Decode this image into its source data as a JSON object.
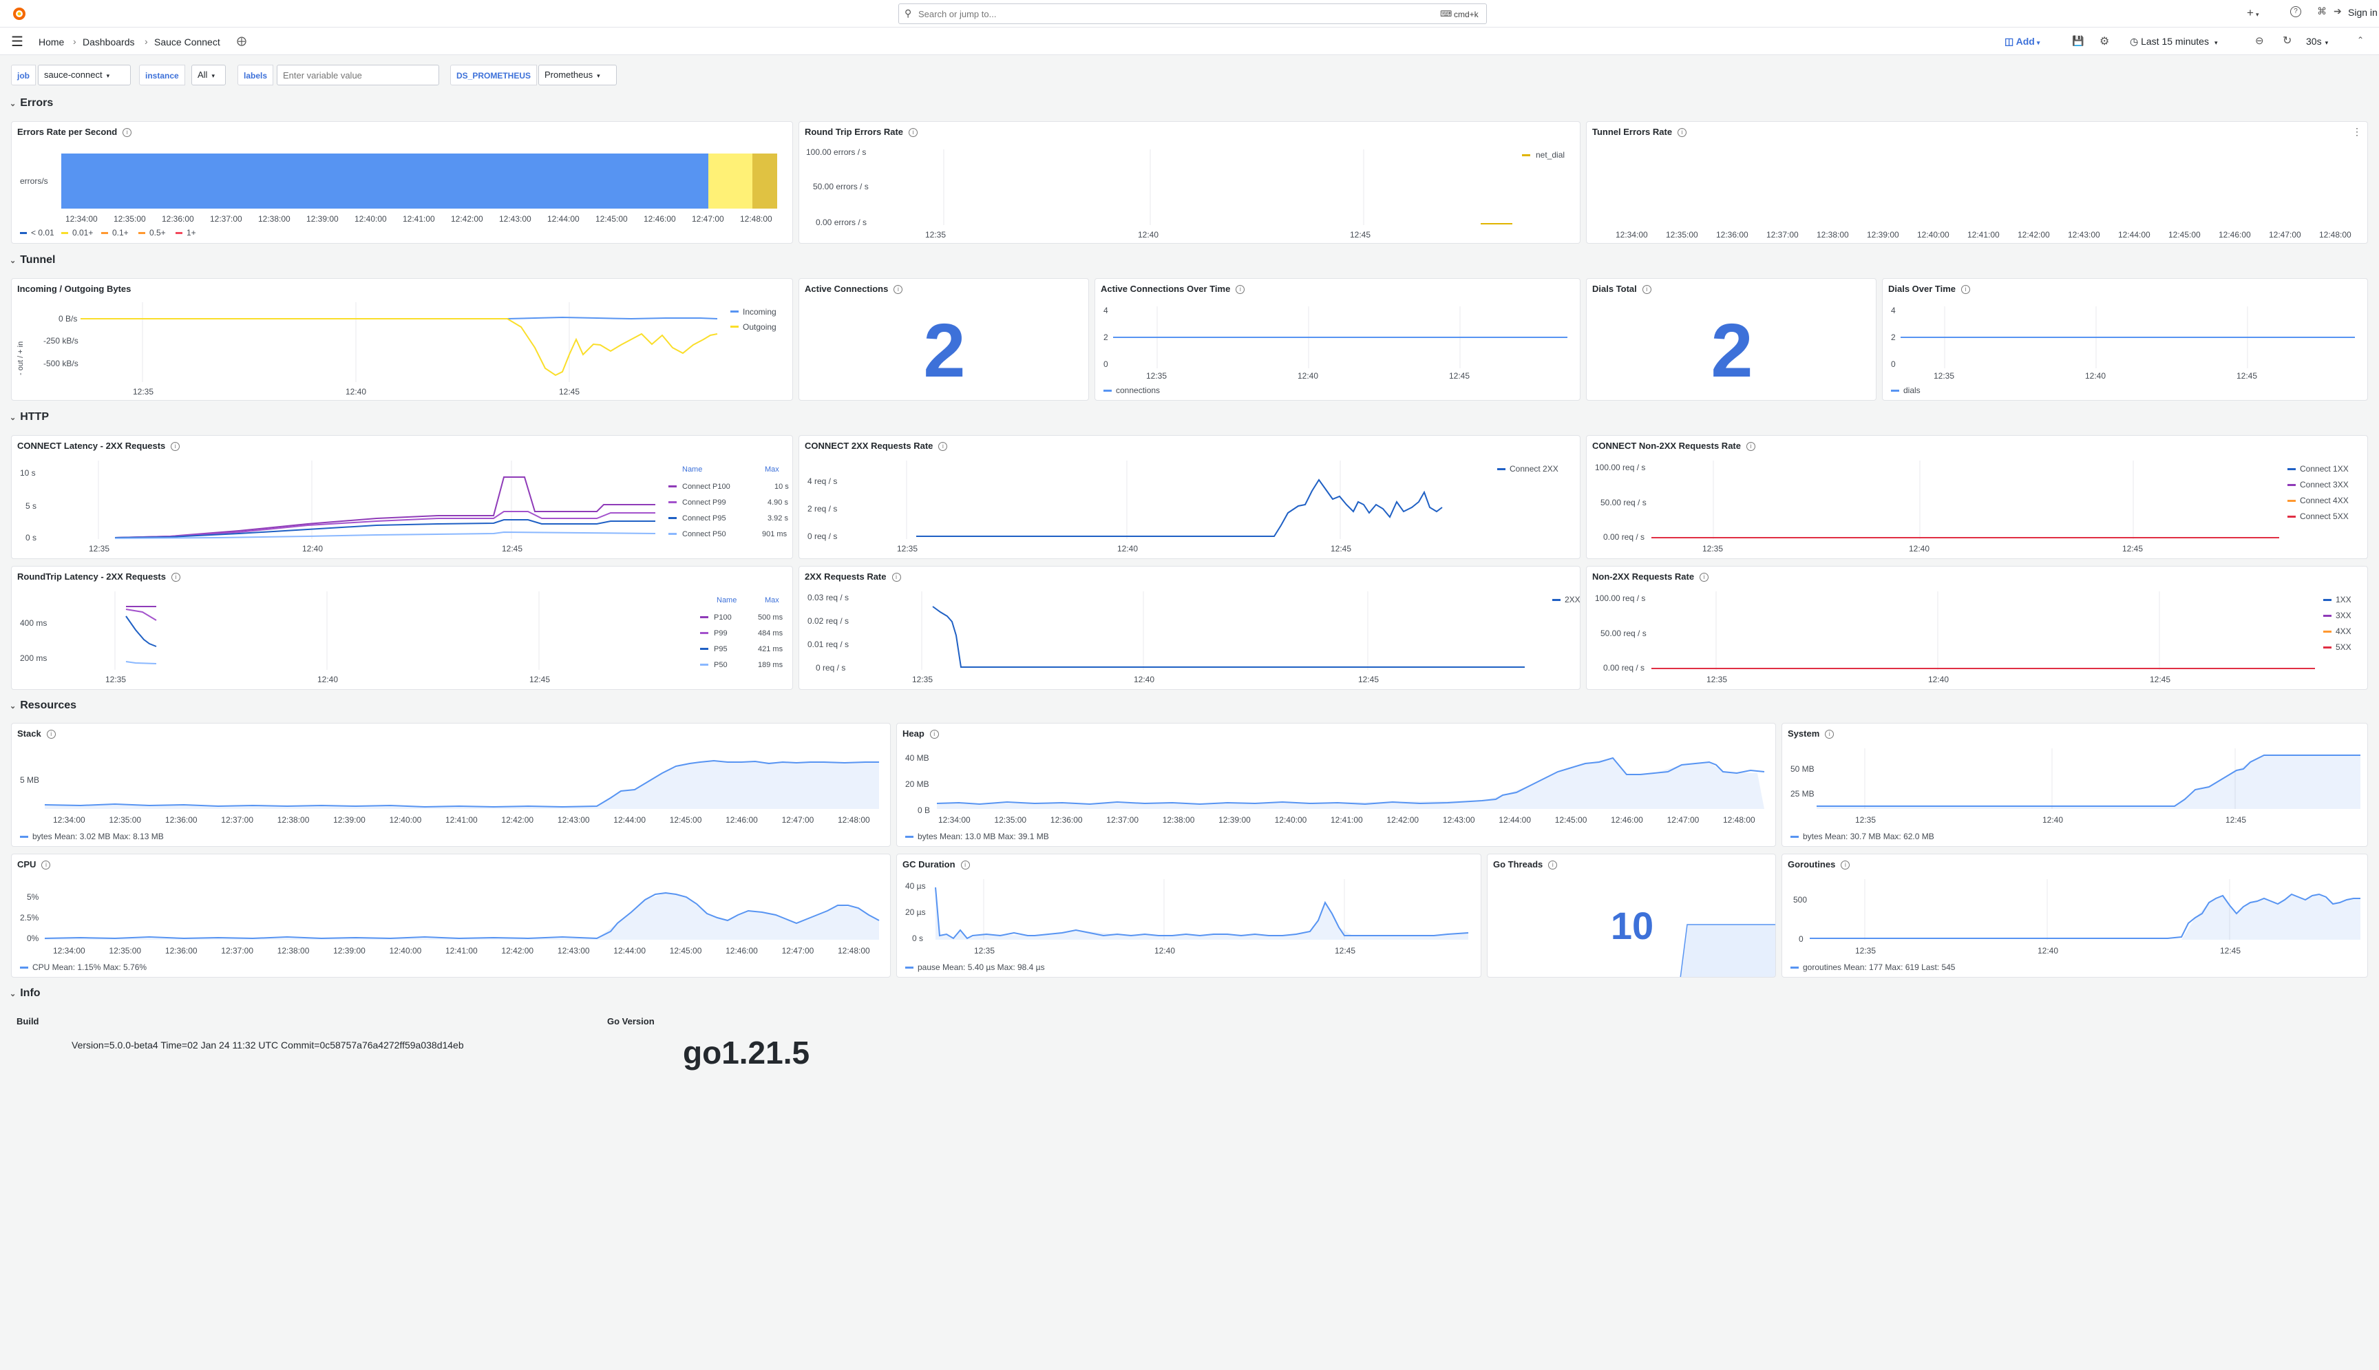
{
  "topbar": {
    "search_placeholder": "Search or jump to...",
    "search_shortcut": "cmd+k",
    "plus_label": "+",
    "sign_in": "Sign in"
  },
  "navbar": {
    "breadcrumb": [
      "Home",
      "Dashboards",
      "Sauce Connect"
    ],
    "add_label": "Add",
    "time_range": "Last 15 minutes",
    "refresh": "30s"
  },
  "variables": [
    {
      "label": "job",
      "value": "sauce-connect"
    },
    {
      "label": "instance",
      "value": "All"
    },
    {
      "label": "labels",
      "placeholder": "Enter variable value"
    },
    {
      "label": "DS_PROMETHEUS",
      "value": "Prometheus"
    }
  ],
  "rows": {
    "errors": "Errors",
    "tunnel": "Tunnel",
    "http": "HTTP",
    "resources": "Resources",
    "info": "Info"
  },
  "colors": {
    "blue": "#5794f2",
    "yellow": "#fade2a",
    "orange": "#ff9830",
    "red": "#f2495c",
    "purple": "#8f3bb8",
    "darkblue": "#1f60c4",
    "lightblue": "#8ab8ff",
    "statblue": "#3d71d9",
    "dark_yellow": "#e0b400"
  },
  "panels": {
    "errors_rate": {
      "title": "Errors Rate per Second",
      "ylabel": "errors/s",
      "xticks": [
        "12:34:00",
        "12:35:00",
        "12:36:00",
        "12:37:00",
        "12:38:00",
        "12:39:00",
        "12:40:00",
        "12:41:00",
        "12:42:00",
        "12:43:00",
        "12:44:00",
        "12:45:00",
        "12:46:00",
        "12:47:00",
        "12:48:00"
      ],
      "legend": [
        "< 0.01",
        "0.01+",
        "0.1+",
        "0.5+",
        "1+"
      ]
    },
    "rt_errors": {
      "title": "Round Trip Errors Rate",
      "yticks": [
        "100.00 errors / s",
        "50.00 errors / s",
        "0.00 errors / s"
      ],
      "xticks": [
        "12:35",
        "12:40",
        "12:45"
      ],
      "legend": [
        "net_dial"
      ]
    },
    "tunnel_errors": {
      "title": "Tunnel Errors Rate",
      "xticks": [
        "12:34:00",
        "12:35:00",
        "12:36:00",
        "12:37:00",
        "12:38:00",
        "12:39:00",
        "12:40:00",
        "12:41:00",
        "12:42:00",
        "12:43:00",
        "12:44:00",
        "12:45:00",
        "12:46:00",
        "12:47:00",
        "12:48:00"
      ]
    },
    "io_bytes": {
      "title": "Incoming / Outgoing Bytes",
      "ylabel": "- out / + in",
      "yticks": [
        "0 B/s",
        "-250 kB/s",
        "-500 kB/s"
      ],
      "xticks": [
        "12:35",
        "12:40",
        "12:45"
      ],
      "legend": [
        "Incoming",
        "Outgoing"
      ]
    },
    "active_conn": {
      "title": "Active Connections",
      "value": "2"
    },
    "active_conn_time": {
      "title": "Active Connections Over Time",
      "yticks": [
        "4",
        "2",
        "0"
      ],
      "xticks": [
        "12:35",
        "12:40",
        "12:45"
      ],
      "legend": [
        "connections"
      ]
    },
    "dials_total": {
      "title": "Dials Total",
      "value": "2"
    },
    "dials_time": {
      "title": "Dials Over Time",
      "yticks": [
        "4",
        "2",
        "0"
      ],
      "xticks": [
        "12:35",
        "12:40",
        "12:45"
      ],
      "legend": [
        "dials"
      ]
    },
    "connect_latency": {
      "title": "CONNECT Latency - 2XX Requests",
      "yticks": [
        "10 s",
        "5 s",
        "0 s"
      ],
      "xticks": [
        "12:35",
        "12:40",
        "12:45"
      ],
      "legend_headers": [
        "Name",
        "Max"
      ],
      "legend": [
        [
          "Connect P100",
          "10 s"
        ],
        [
          "Connect P99",
          "4.90 s"
        ],
        [
          "Connect P95",
          "3.92 s"
        ],
        [
          "Connect P50",
          "901 ms"
        ]
      ]
    },
    "connect_2xx": {
      "title": "CONNECT 2XX Requests Rate",
      "yticks": [
        "4 req / s",
        "2 req / s",
        "0 req / s"
      ],
      "xticks": [
        "12:35",
        "12:40",
        "12:45"
      ],
      "legend": [
        "Connect 2XX"
      ]
    },
    "connect_non2xx": {
      "title": "CONNECT Non-2XX Requests Rate",
      "yticks": [
        "100.00 req / s",
        "50.00 req / s",
        "0.00 req / s"
      ],
      "xticks": [
        "12:35",
        "12:40",
        "12:45"
      ],
      "legend": [
        "Connect 1XX",
        "Connect 3XX",
        "Connect 4XX",
        "Connect 5XX"
      ]
    },
    "rt_latency": {
      "title": "RoundTrip Latency - 2XX Requests",
      "yticks": [
        "400 ms",
        "200 ms"
      ],
      "xticks": [
        "12:35",
        "12:40",
        "12:45"
      ],
      "legend_headers": [
        "Name",
        "Max"
      ],
      "legend": [
        [
          "P100",
          "500 ms"
        ],
        [
          "P99",
          "484 ms"
        ],
        [
          "P95",
          "421 ms"
        ],
        [
          "P50",
          "189 ms"
        ]
      ]
    },
    "rate_2xx": {
      "title": "2XX Requests Rate",
      "yticks": [
        "0.03 req / s",
        "0.02 req / s",
        "0.01 req / s",
        "0 req / s"
      ],
      "xticks": [
        "12:35",
        "12:40",
        "12:45"
      ],
      "legend": [
        "2XX"
      ]
    },
    "rate_non2xx": {
      "title": "Non-2XX Requests Rate",
      "yticks": [
        "100.00 req / s",
        "50.00 req / s",
        "0.00 req / s"
      ],
      "xticks": [
        "12:35",
        "12:40",
        "12:45"
      ],
      "legend": [
        "1XX",
        "3XX",
        "4XX",
        "5XX"
      ]
    },
    "stack": {
      "title": "Stack",
      "yticks": [
        "5 MB"
      ],
      "xticks": [
        "12:34:00",
        "12:35:00",
        "12:36:00",
        "12:37:00",
        "12:38:00",
        "12:39:00",
        "12:40:00",
        "12:41:00",
        "12:42:00",
        "12:43:00",
        "12:44:00",
        "12:45:00",
        "12:46:00",
        "12:47:00",
        "12:48:00"
      ],
      "legend": "bytes  Mean: 3.02 MB  Max: 8.13 MB"
    },
    "heap": {
      "title": "Heap",
      "yticks": [
        "40 MB",
        "20 MB",
        "0 B"
      ],
      "xticks": [
        "12:34:00",
        "12:35:00",
        "12:36:00",
        "12:37:00",
        "12:38:00",
        "12:39:00",
        "12:40:00",
        "12:41:00",
        "12:42:00",
        "12:43:00",
        "12:44:00",
        "12:45:00",
        "12:46:00",
        "12:47:00",
        "12:48:00"
      ],
      "legend": "bytes  Mean: 13.0 MB  Max: 39.1 MB"
    },
    "system": {
      "title": "System",
      "yticks": [
        "50 MB",
        "25 MB"
      ],
      "xticks": [
        "12:35",
        "12:40",
        "12:45"
      ],
      "legend": "bytes  Mean: 30.7 MB  Max: 62.0 MB"
    },
    "cpu": {
      "title": "CPU",
      "yticks": [
        "5%",
        "2.5%",
        "0%"
      ],
      "xticks": [
        "12:34:00",
        "12:35:00",
        "12:36:00",
        "12:37:00",
        "12:38:00",
        "12:39:00",
        "12:40:00",
        "12:41:00",
        "12:42:00",
        "12:43:00",
        "12:44:00",
        "12:45:00",
        "12:46:00",
        "12:47:00",
        "12:48:00"
      ],
      "legend": "CPU  Mean: 1.15%  Max: 5.76%"
    },
    "gc": {
      "title": "GC Duration",
      "yticks": [
        "40 µs",
        "20 µs",
        "0 s"
      ],
      "xticks": [
        "12:35",
        "12:40",
        "12:45"
      ],
      "legend": "pause  Mean: 5.40 µs  Max: 98.4 µs"
    },
    "go_threads": {
      "title": "Go Threads",
      "value": "10"
    },
    "goroutines": {
      "title": "Goroutines",
      "yticks": [
        "500",
        "0"
      ],
      "xticks": [
        "12:35",
        "12:40",
        "12:45"
      ],
      "legend": "goroutines  Mean: 177  Max: 619  Last: 545"
    },
    "build": {
      "title": "Build",
      "text": "Version=5.0.0-beta4 Time=02 Jan 24 11:32 UTC Commit=0c58757a76a4272ff59a038d14eb"
    },
    "go_version": {
      "title": "Go Version",
      "text": "go1.21.5"
    }
  }
}
